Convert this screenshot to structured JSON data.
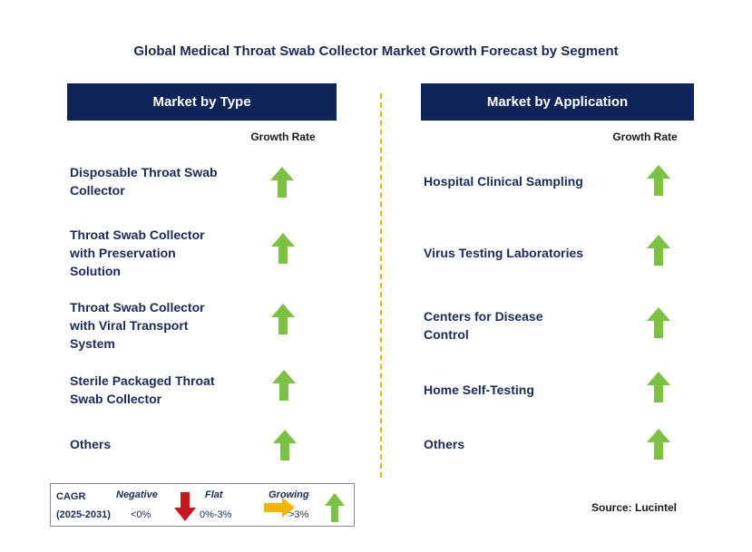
{
  "title": "Global Medical Throat Swab Collector Market Growth Forecast by Segment",
  "left_panel": {
    "header": "Market by Type",
    "growth_header": "Growth Rate",
    "rows": [
      {
        "label": "Disposable Throat Swab Collector",
        "trend": "growing"
      },
      {
        "label": "Throat Swab Collector with Preservation Solution",
        "trend": "growing"
      },
      {
        "label": "Throat Swab Collector with Viral Transport System",
        "trend": "growing"
      },
      {
        "label": "Sterile Packaged Throat Swab Collector",
        "trend": "growing"
      },
      {
        "label": "Others",
        "trend": "growing"
      }
    ]
  },
  "right_panel": {
    "header": "Market by Application",
    "growth_header": "Growth Rate",
    "rows": [
      {
        "label": "Hospital Clinical Sampling",
        "trend": "growing"
      },
      {
        "label": "Virus Testing Laboratories",
        "trend": "growing"
      },
      {
        "label": "Centers for Disease Control",
        "trend": "growing"
      },
      {
        "label": "Home Self-Testing",
        "trend": "growing"
      },
      {
        "label": "Others",
        "trend": "growing"
      }
    ]
  },
  "legend": {
    "cagr_label": "CAGR",
    "period": "(2025-2031)",
    "negative_label": "Negative",
    "negative_range": "<0%",
    "flat_label": "Flat",
    "flat_range": "0%-3%",
    "growing_label": "Growing",
    "growing_range": ">3%"
  },
  "source": "Source: Lucintel",
  "colors": {
    "header_bg": "#0f2459",
    "growing": "#7cc242",
    "negative": "#c8161d",
    "flat": "#f5b400",
    "divider": "#f0b400"
  }
}
